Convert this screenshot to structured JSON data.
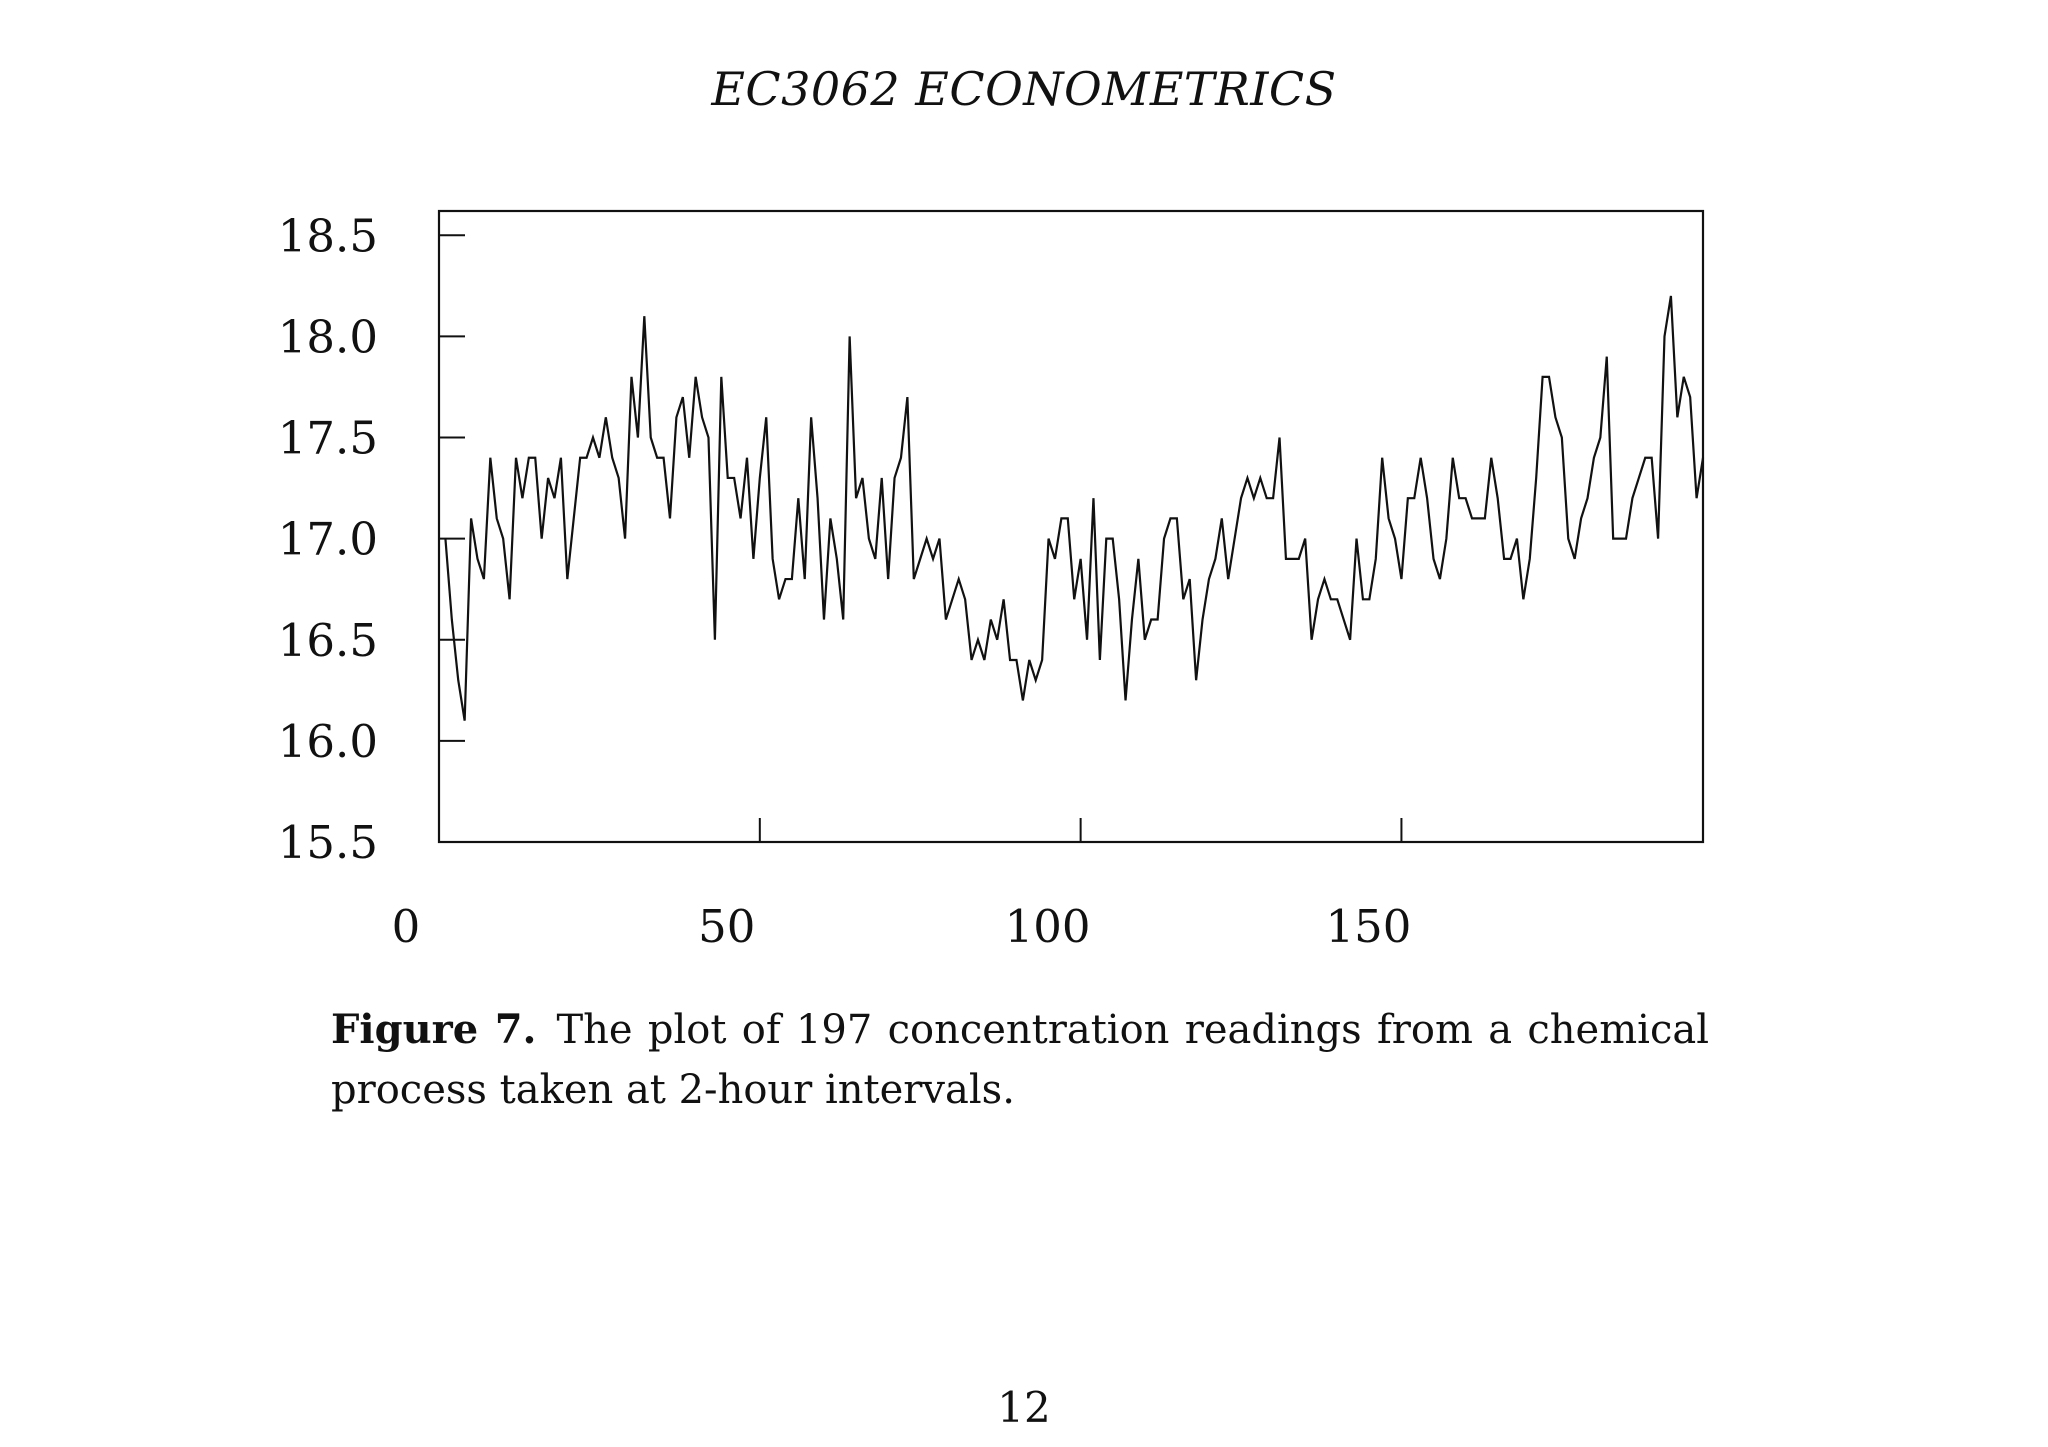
{
  "page": {
    "running_head": "EC3062 ECONOMETRICS",
    "page_number": "12"
  },
  "caption": {
    "label": "Figure 7.",
    "text": "The plot of 197 concentration readings from a chemical process taken at 2-hour intervals."
  },
  "chart_data": {
    "type": "line",
    "title": "",
    "xlabel": "",
    "ylabel": "",
    "xlim": [
      0,
      197
    ],
    "ylim": [
      15.5,
      18.62
    ],
    "x_ticks": [
      0,
      50,
      100,
      150
    ],
    "x_tick_labels": [
      "0",
      "50",
      "100",
      "150"
    ],
    "y_ticks": [
      15.5,
      16.0,
      16.5,
      17.0,
      17.5,
      18.0,
      18.5
    ],
    "y_tick_labels": [
      "15.5",
      "16.0",
      "16.5",
      "17.0",
      "17.5",
      "18.0",
      "18.5"
    ],
    "grid": false,
    "legend": "none",
    "line_color": "#111111",
    "series": [
      {
        "x_start": 1,
        "x_step": 1,
        "values": [
          17.0,
          16.6,
          16.3,
          16.1,
          17.1,
          16.9,
          16.8,
          17.4,
          17.1,
          17.0,
          16.7,
          17.4,
          17.2,
          17.4,
          17.4,
          17.0,
          17.3,
          17.2,
          17.4,
          16.8,
          17.1,
          17.4,
          17.4,
          17.5,
          17.4,
          17.6,
          17.4,
          17.3,
          17.0,
          17.8,
          17.5,
          18.1,
          17.5,
          17.4,
          17.4,
          17.1,
          17.6,
          17.7,
          17.4,
          17.8,
          17.6,
          17.5,
          16.5,
          17.8,
          17.3,
          17.3,
          17.1,
          17.4,
          16.9,
          17.3,
          17.6,
          16.9,
          16.7,
          16.8,
          16.8,
          17.2,
          16.8,
          17.6,
          17.2,
          16.6,
          17.1,
          16.9,
          16.6,
          18.0,
          17.2,
          17.3,
          17.0,
          16.9,
          17.3,
          16.8,
          17.3,
          17.4,
          17.7,
          16.8,
          16.9,
          17.0,
          16.9,
          17.0,
          16.6,
          16.7,
          16.8,
          16.7,
          16.4,
          16.5,
          16.4,
          16.6,
          16.5,
          16.7,
          16.4,
          16.4,
          16.2,
          16.4,
          16.3,
          16.4,
          17.0,
          16.9,
          17.1,
          17.1,
          16.7,
          16.9,
          16.5,
          17.2,
          16.4,
          17.0,
          17.0,
          16.7,
          16.2,
          16.6,
          16.9,
          16.5,
          16.6,
          16.6,
          17.0,
          17.1,
          17.1,
          16.7,
          16.8,
          16.3,
          16.6,
          16.8,
          16.9,
          17.1,
          16.8,
          17.0,
          17.2,
          17.3,
          17.2,
          17.3,
          17.2,
          17.2,
          17.5,
          16.9,
          16.9,
          16.9,
          17.0,
          16.5,
          16.7,
          16.8,
          16.7,
          16.7,
          16.6,
          16.5,
          17.0,
          16.7,
          16.7,
          16.9,
          17.4,
          17.1,
          17.0,
          16.8,
          17.2,
          17.2,
          17.4,
          17.2,
          16.9,
          16.8,
          17.0,
          17.4,
          17.2,
          17.2,
          17.1,
          17.1,
          17.1,
          17.4,
          17.2,
          16.9,
          16.9,
          17.0,
          16.7,
          16.9,
          17.3,
          17.8,
          17.8,
          17.6,
          17.5,
          17.0,
          16.9,
          17.1,
          17.2,
          17.4,
          17.5,
          17.9,
          17.0,
          17.0,
          17.0,
          17.2,
          17.3,
          17.4,
          17.4,
          17.0,
          18.0,
          18.2,
          17.6,
          17.8,
          17.7,
          17.2,
          17.4
        ]
      }
    ]
  }
}
